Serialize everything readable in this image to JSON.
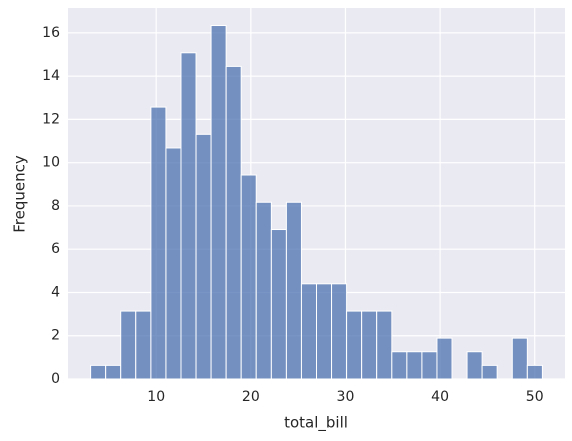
{
  "chart_data": {
    "type": "histogram",
    "xlabel": "total_bill",
    "ylabel": "Frequency",
    "bins": [
      3.07,
      4.66,
      6.25,
      7.84,
      9.44,
      11.03,
      12.62,
      14.21,
      15.8,
      17.39,
      18.98,
      20.57,
      22.17,
      23.76,
      25.35,
      26.94,
      28.53,
      30.12,
      31.71,
      33.3,
      34.9,
      36.49,
      38.08,
      39.67,
      41.26,
      42.85,
      44.44,
      46.03,
      47.63,
      49.22,
      50.81
    ],
    "values": [
      0.63,
      0.63,
      3.14,
      3.14,
      12.57,
      10.68,
      15.08,
      11.31,
      16.34,
      14.45,
      9.43,
      8.17,
      6.91,
      8.17,
      4.4,
      4.4,
      4.4,
      3.14,
      3.14,
      3.14,
      1.26,
      1.26,
      1.26,
      1.89,
      0,
      1.26,
      0.63,
      0,
      1.89,
      0.63
    ],
    "color": "#4c72b0",
    "xlim": [
      0.68,
      53.2
    ],
    "xticks": [
      10,
      20,
      30,
      40,
      50
    ],
    "ylim": [
      0,
      17.15
    ],
    "yticks": [
      0,
      2,
      4,
      6,
      8,
      10,
      12,
      14,
      16
    ],
    "grid": true
  }
}
